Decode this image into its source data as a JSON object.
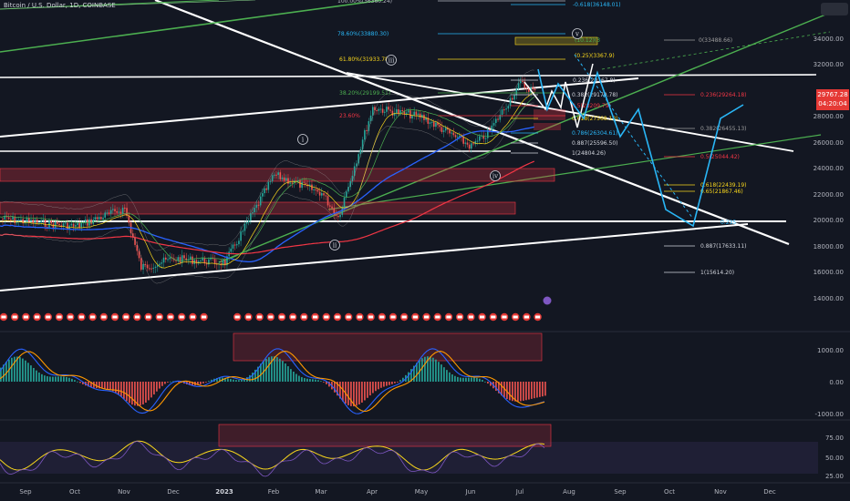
{
  "header": {
    "symbol": "Bitcoin / U.S. Dollar, 1D, COINBASE"
  },
  "price_tag": {
    "price": "29767.28",
    "countdown": "04:20:04"
  },
  "colors": {
    "background": "#131722",
    "candle_up": "#26a69a",
    "candle_down": "#ef5350",
    "ema_blue": "#2962ff",
    "ema_red": "#f23645",
    "trend_green": "#4caf50",
    "projection": "#29b6f6",
    "fib_yellow": "#f9d71c",
    "grid": "#1e222d"
  },
  "chart_data": [
    {
      "type": "candlestick",
      "title": "",
      "x_axis_labels": [
        "Sep",
        "Oct",
        "Nov",
        "Dec",
        "2023",
        "Feb",
        "Mar",
        "Apr",
        "May",
        "Jun",
        "Jul",
        "Aug",
        "Sep",
        "Oct",
        "Nov",
        "Dec"
      ],
      "y_axis_labels": [
        "34000.00",
        "32000.00",
        "28000.00",
        "26000.00",
        "24000.00",
        "22000.00",
        "20000.00",
        "18000.00",
        "16000.00",
        "14000.00"
      ],
      "ylim": [
        12500,
        36500
      ],
      "price_path": [
        [
          "Sep",
          20000
        ],
        [
          "Oct",
          19400
        ],
        [
          "Nov",
          20800
        ],
        [
          "Nov",
          16200
        ],
        [
          "Dec",
          16900
        ],
        [
          "2023",
          16600
        ],
        [
          "Feb",
          23400
        ],
        [
          "Mar",
          22000
        ],
        [
          "Mar",
          20100
        ],
        [
          "Apr",
          28600
        ],
        [
          "May",
          27900
        ],
        [
          "Jun",
          25600
        ],
        [
          "Jun",
          26600
        ],
        [
          "Jul",
          30500
        ],
        [
          "Jul",
          29767
        ]
      ],
      "fib_levels_left": [
        "100.00%(36360.24)",
        "78.60%(33880.30)",
        "61.80%(31933.78)",
        "38.20%(29199.51)",
        "23.60%",
        "0.236(29167.8)",
        "0.382(29170.78)",
        "0.5(28209.79)",
        "0.618(27568.10)",
        "0.786(26304.61)",
        "0.887(25596.50)",
        "1(24804.26)"
      ],
      "fib_levels_right": [
        "-0.618(36148.01)",
        "0(33488.66)",
        "0.236(29264.18)",
        "0.382(26455.13)",
        "0.5(25044.42)",
        "0.618(22439.19)",
        "0.65(21867.46)",
        "0.887(17633.11)",
        "1(15614.20)"
      ],
      "extra_labels": [
        "(0.25)(3367.9)",
        "(10.12)(3"
      ],
      "wave_labels": [
        "i",
        "ii",
        "iii",
        "iv",
        "v"
      ],
      "right_labels": [
        "0.235"
      ]
    },
    {
      "type": "histogram",
      "title": "",
      "y_axis_labels": [
        "1000.00",
        "0.00",
        "-1000.00"
      ]
    },
    {
      "type": "line",
      "title": "",
      "y_axis_labels": [
        "75.00",
        "50.00",
        "25.00"
      ]
    }
  ]
}
